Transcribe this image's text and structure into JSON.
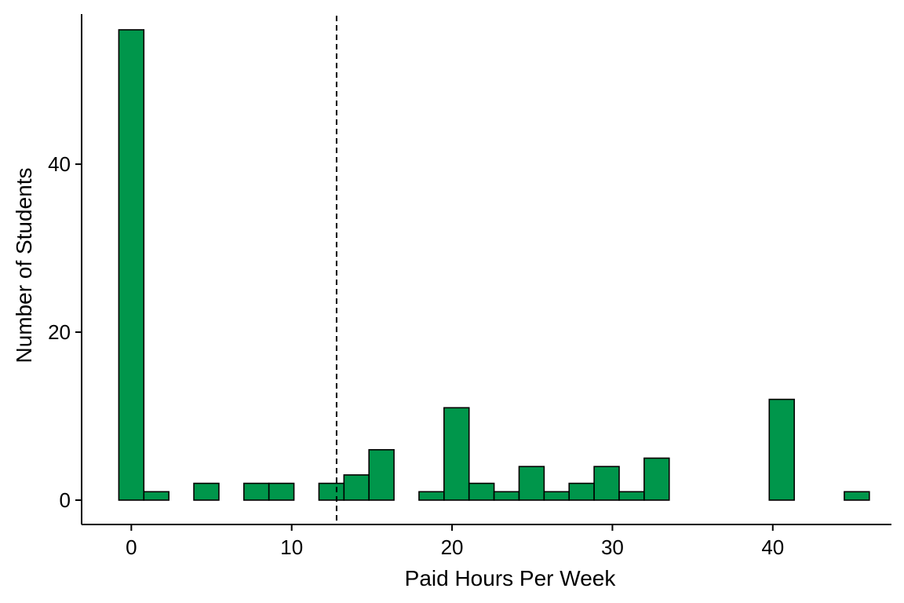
{
  "chart_data": {
    "type": "bar",
    "subtype": "histogram",
    "title": "",
    "xlabel": "Paid Hours Per Week",
    "ylabel": "Number of Students",
    "bin_width": 1.56,
    "bins": [
      {
        "x_start": -0.78,
        "x_end": 0.78,
        "count": 56
      },
      {
        "x_start": 0.78,
        "x_end": 2.34,
        "count": 1
      },
      {
        "x_start": 2.34,
        "x_end": 3.9,
        "count": 0
      },
      {
        "x_start": 3.9,
        "x_end": 5.46,
        "count": 2
      },
      {
        "x_start": 5.46,
        "x_end": 7.02,
        "count": 0
      },
      {
        "x_start": 7.02,
        "x_end": 8.58,
        "count": 2
      },
      {
        "x_start": 8.58,
        "x_end": 10.14,
        "count": 2
      },
      {
        "x_start": 10.14,
        "x_end": 11.7,
        "count": 0
      },
      {
        "x_start": 11.7,
        "x_end": 13.26,
        "count": 2
      },
      {
        "x_start": 13.26,
        "x_end": 14.82,
        "count": 3
      },
      {
        "x_start": 14.82,
        "x_end": 16.38,
        "count": 6
      },
      {
        "x_start": 16.38,
        "x_end": 17.94,
        "count": 0
      },
      {
        "x_start": 17.94,
        "x_end": 19.5,
        "count": 1
      },
      {
        "x_start": 19.5,
        "x_end": 21.06,
        "count": 11
      },
      {
        "x_start": 21.06,
        "x_end": 22.62,
        "count": 2
      },
      {
        "x_start": 22.62,
        "x_end": 24.18,
        "count": 1
      },
      {
        "x_start": 24.18,
        "x_end": 25.74,
        "count": 4
      },
      {
        "x_start": 25.74,
        "x_end": 27.3,
        "count": 1
      },
      {
        "x_start": 27.3,
        "x_end": 28.86,
        "count": 2
      },
      {
        "x_start": 28.86,
        "x_end": 30.42,
        "count": 4
      },
      {
        "x_start": 30.42,
        "x_end": 31.98,
        "count": 1
      },
      {
        "x_start": 31.98,
        "x_end": 33.54,
        "count": 5
      },
      {
        "x_start": 33.54,
        "x_end": 35.1,
        "count": 0
      },
      {
        "x_start": 35.1,
        "x_end": 36.66,
        "count": 0
      },
      {
        "x_start": 36.66,
        "x_end": 38.22,
        "count": 0
      },
      {
        "x_start": 38.22,
        "x_end": 39.78,
        "count": 0
      },
      {
        "x_start": 39.78,
        "x_end": 41.34,
        "count": 12
      },
      {
        "x_start": 41.34,
        "x_end": 42.9,
        "count": 0
      },
      {
        "x_start": 42.9,
        "x_end": 44.46,
        "count": 0
      },
      {
        "x_start": 44.46,
        "x_end": 46.02,
        "count": 1
      }
    ],
    "reference_line": {
      "x": 12.8,
      "style": "dashed"
    },
    "xlim": [
      -3.1,
      47.4
    ],
    "ylim": [
      -2.9,
      58.8
    ],
    "x_ticks": [
      0,
      10,
      20,
      30,
      40
    ],
    "y_ticks": [
      0,
      20,
      40
    ],
    "bar_fill": "#00964b",
    "bar_outline": "#000000",
    "grid": false,
    "legend": "none"
  }
}
